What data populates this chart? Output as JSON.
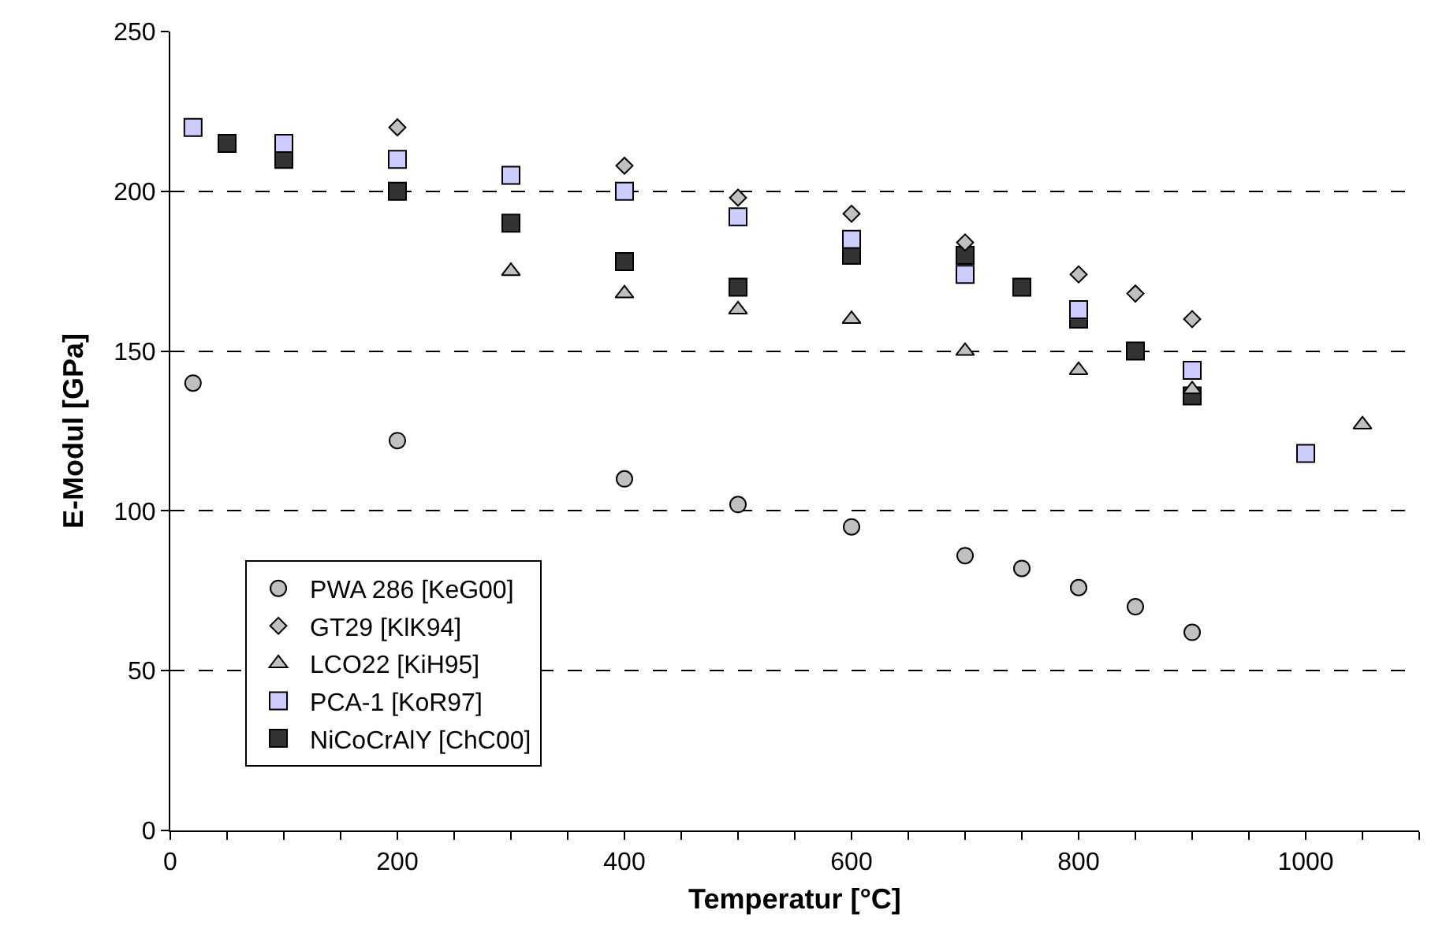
{
  "chart_data": {
    "type": "scatter",
    "xlabel": "Temperatur [°C]",
    "ylabel": "E-Modul [GPa]",
    "xlim": [
      0,
      1100
    ],
    "xticks": [
      0,
      {
        "value": 50,
        "label": null
      },
      {
        "value": 100,
        "label": null
      },
      {
        "value": 150,
        "label": null
      },
      200,
      {
        "value": 250,
        "label": null
      },
      {
        "value": 300,
        "label": null
      },
      {
        "value": 350,
        "label": null
      },
      400,
      {
        "value": 450,
        "label": null
      },
      {
        "value": 500,
        "label": null
      },
      {
        "value": 550,
        "label": null
      },
      600,
      {
        "value": 650,
        "label": null
      },
      {
        "value": 700,
        "label": null
      },
      {
        "value": 750,
        "label": null
      },
      800,
      {
        "value": 850,
        "label": null
      },
      {
        "value": 900,
        "label": null
      },
      {
        "value": 950,
        "label": null
      },
      1000,
      {
        "value": 1050,
        "label": null
      },
      {
        "value": 1100,
        "label": null
      }
    ],
    "ylim": [
      0,
      250
    ],
    "yticks": [
      0,
      50,
      100,
      150,
      200,
      250
    ],
    "grid": "y",
    "legend": "bottom left",
    "series": [
      {
        "name": "PWA 286 [KeG00]",
        "color": "#c0c0c0",
        "marker": "circle",
        "x": [
          20,
          200,
          400,
          500,
          600,
          700,
          750,
          800,
          850,
          900
        ],
        "values": [
          140,
          122,
          110,
          102,
          95,
          86,
          82,
          76,
          70,
          62
        ]
      },
      {
        "name": "GT29 [KlK94]",
        "color": "#c0c0c0",
        "marker": "diamond",
        "x": [
          200,
          400,
          500,
          600,
          700,
          800,
          850,
          900
        ],
        "values": [
          220,
          208,
          198,
          193,
          184,
          174,
          168,
          160
        ]
      },
      {
        "name": "LCO22 [KiH95]",
        "color": "#c0c0c0",
        "marker": "triangle",
        "x": [
          300,
          400,
          500,
          600,
          700,
          800,
          900,
          1050
        ],
        "values": [
          175,
          168,
          163,
          160,
          150,
          144,
          138,
          127
        ]
      },
      {
        "name": "PCA-1 [KoR97]",
        "color": "#ccccff",
        "marker": "square",
        "x": [
          20,
          100,
          200,
          300,
          400,
          500,
          600,
          700,
          800,
          900,
          1000
        ],
        "values": [
          220,
          215,
          210,
          205,
          200,
          192,
          185,
          174,
          163,
          144,
          118
        ]
      },
      {
        "name": "NiCoCrAlY [ChC00]",
        "color": "#333333",
        "marker": "square",
        "x": [
          50,
          100,
          200,
          300,
          400,
          500,
          600,
          700,
          750,
          800,
          850,
          900
        ],
        "values": [
          215,
          210,
          200,
          190,
          178,
          170,
          180,
          180,
          170,
          160,
          150,
          136
        ]
      }
    ]
  }
}
